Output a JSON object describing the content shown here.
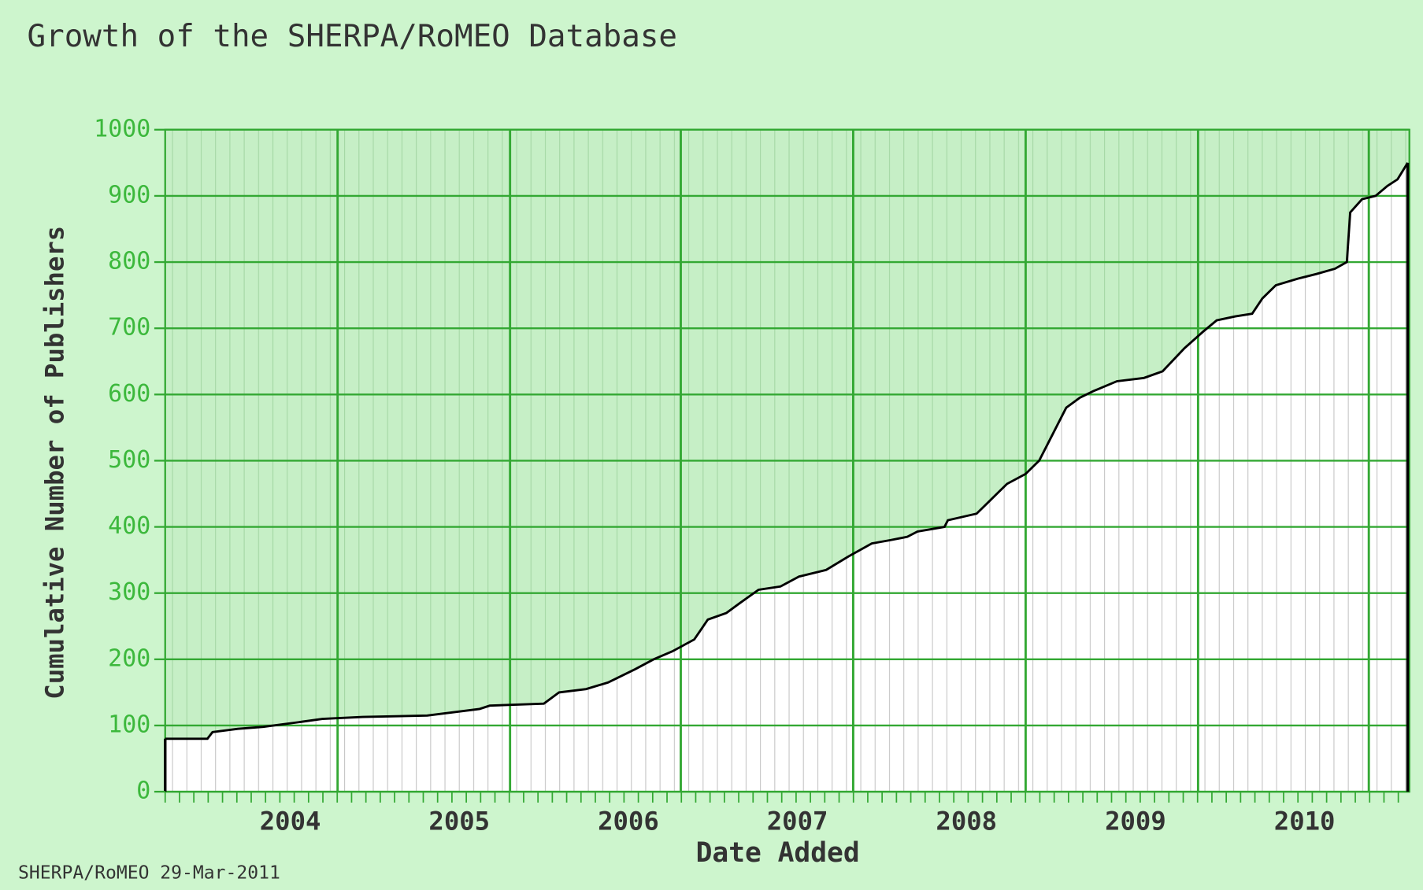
{
  "chart_data": {
    "type": "line",
    "title": "Growth of the SHERPA/RoMEO Database",
    "x_label": "Date Added",
    "y_label": "Cumulative Number of Publishers",
    "footer": "SHERPA/RoMEO 29-Mar-2011",
    "x": [
      2003.26,
      2003.51,
      2003.54,
      2003.69,
      2003.84,
      2004.05,
      2004.19,
      2004.43,
      2004.81,
      2005.12,
      2005.18,
      2005.5,
      2005.59,
      2005.75,
      2005.88,
      2006.04,
      2006.15,
      2006.26,
      2006.39,
      2006.47,
      2006.58,
      2006.66,
      2006.77,
      2006.9,
      2007.01,
      2007.17,
      2007.3,
      2007.44,
      2007.55,
      2007.65,
      2007.71,
      2007.87,
      2007.89,
      2008.06,
      2008.14,
      2008.24,
      2008.35,
      2008.43,
      2008.49,
      2008.59,
      2008.67,
      2008.75,
      2008.89,
      2009.05,
      2009.16,
      2009.29,
      2009.4,
      2009.48,
      2009.59,
      2009.69,
      2009.75,
      2009.83,
      2009.96,
      2010.07,
      2010.18,
      2010.25,
      2010.27,
      2010.34,
      2010.42,
      2010.49,
      2010.55,
      2010.61
    ],
    "series": [
      {
        "name": "Publishers",
        "color": "#000000",
        "values": [
          80,
          80,
          90,
          95,
          98,
          105,
          110,
          113,
          115,
          125,
          130,
          133,
          150,
          155,
          165,
          185,
          200,
          212,
          230,
          260,
          270,
          285,
          305,
          310,
          325,
          335,
          355,
          375,
          380,
          385,
          393,
          400,
          410,
          420,
          440,
          465,
          480,
          500,
          530,
          580,
          595,
          605,
          620,
          625,
          635,
          670,
          695,
          712,
          718,
          722,
          745,
          765,
          775,
          782,
          790,
          800,
          875,
          895,
          900,
          915,
          925,
          950
        ]
      }
    ],
    "xlim": [
      2003.26,
      2010.62
    ],
    "xticks": [
      2004,
      2005,
      2006,
      2007,
      2008,
      2009,
      2010
    ],
    "xgrid": [
      2004.28,
      2005.3,
      2006.31,
      2007.33,
      2008.35,
      2009.37,
      2010.38
    ],
    "ylim": [
      0,
      1000
    ],
    "yticks": [
      0,
      100,
      200,
      300,
      400,
      500,
      600,
      700,
      800,
      900,
      1000
    ],
    "grid": true,
    "area_fill": "#ffffff",
    "grid_color": "#33a833"
  }
}
